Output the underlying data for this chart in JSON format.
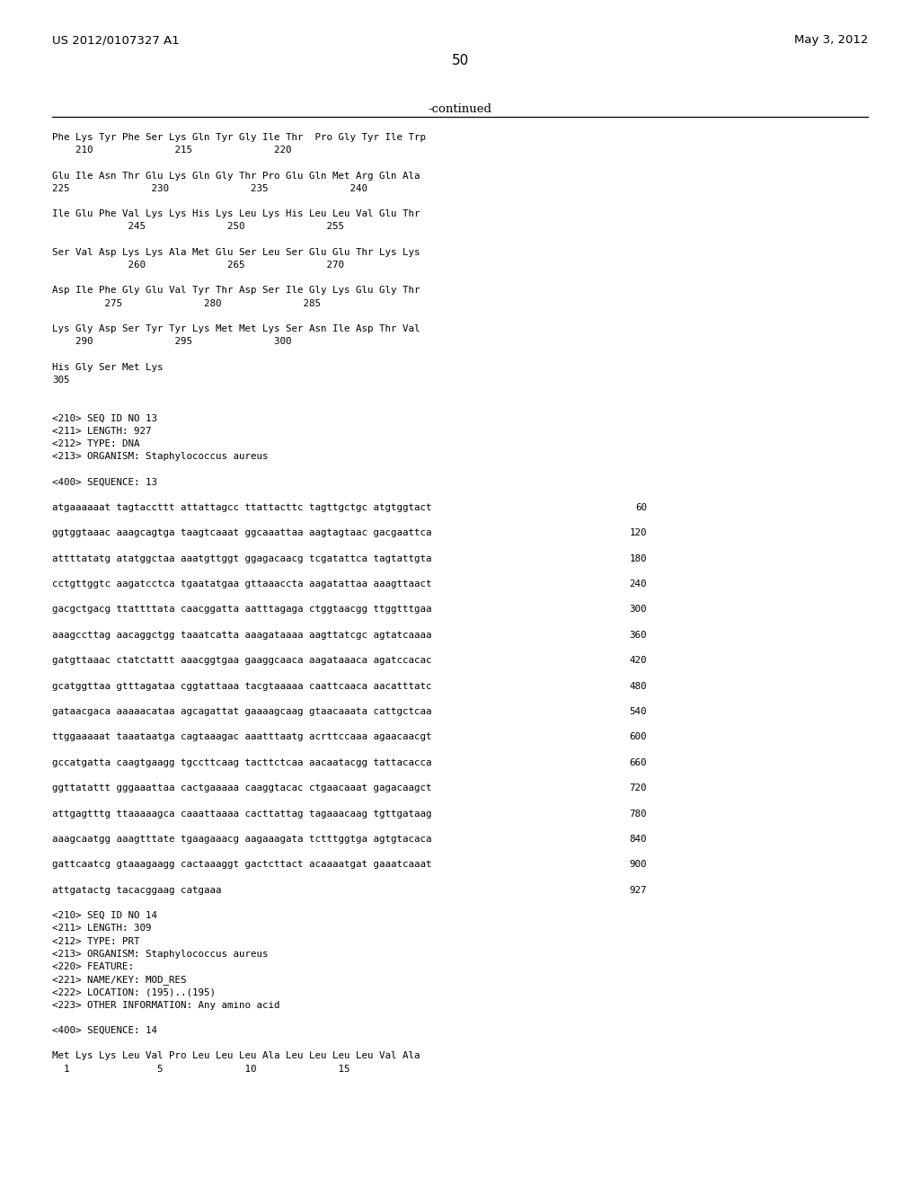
{
  "header_left": "US 2012/0107327 A1",
  "header_right": "May 3, 2012",
  "page_number": "50",
  "continued_label": "-continued",
  "background_color": "#ffffff",
  "text_color": "#000000",
  "content_lines": [
    {
      "text": "Phe Lys Tyr Phe Ser Lys Gln Tyr Gly Ile Thr  Pro Gly Tyr Ile Trp",
      "num": null
    },
    {
      "text": "    210              215              220",
      "num": null
    },
    {
      "text": "",
      "num": null
    },
    {
      "text": "Glu Ile Asn Thr Glu Lys Gln Gly Thr Pro Glu Gln Met Arg Gln Ala",
      "num": null
    },
    {
      "text": "225              230              235              240",
      "num": null
    },
    {
      "text": "",
      "num": null
    },
    {
      "text": "Ile Glu Phe Val Lys Lys His Lys Leu Lys His Leu Leu Val Glu Thr",
      "num": null
    },
    {
      "text": "             245              250              255",
      "num": null
    },
    {
      "text": "",
      "num": null
    },
    {
      "text": "Ser Val Asp Lys Lys Ala Met Glu Ser Leu Ser Glu Glu Thr Lys Lys",
      "num": null
    },
    {
      "text": "             260              265              270",
      "num": null
    },
    {
      "text": "",
      "num": null
    },
    {
      "text": "Asp Ile Phe Gly Glu Val Tyr Thr Asp Ser Ile Gly Lys Glu Gly Thr",
      "num": null
    },
    {
      "text": "         275              280              285",
      "num": null
    },
    {
      "text": "",
      "num": null
    },
    {
      "text": "Lys Gly Asp Ser Tyr Tyr Lys Met Met Lys Ser Asn Ile Asp Thr Val",
      "num": null
    },
    {
      "text": "    290              295              300",
      "num": null
    },
    {
      "text": "",
      "num": null
    },
    {
      "text": "His Gly Ser Met Lys",
      "num": null
    },
    {
      "text": "305",
      "num": null
    },
    {
      "text": "",
      "num": null
    },
    {
      "text": "",
      "num": null
    },
    {
      "text": "<210> SEQ ID NO 13",
      "num": null
    },
    {
      "text": "<211> LENGTH: 927",
      "num": null
    },
    {
      "text": "<212> TYPE: DNA",
      "num": null
    },
    {
      "text": "<213> ORGANISM: Staphylococcus aureus",
      "num": null
    },
    {
      "text": "",
      "num": null
    },
    {
      "text": "<400> SEQUENCE: 13",
      "num": null
    },
    {
      "text": "",
      "num": null
    },
    {
      "text": "atgaaaaaat tagtaccttt attattagcc ttattacttc tagttgctgc atgtggtact",
      "num": "60"
    },
    {
      "text": "",
      "num": null
    },
    {
      "text": "ggtggtaaac aaagcagtga taagtcaaat ggcaaattaa aagtagtaac gacgaattca",
      "num": "120"
    },
    {
      "text": "",
      "num": null
    },
    {
      "text": "attttatatg atatggctaa aaatgttggt ggagacaacg tcgatattca tagtattgta",
      "num": "180"
    },
    {
      "text": "",
      "num": null
    },
    {
      "text": "cctgttggtc aagatcctca tgaatatgaa gttaaaccta aagatattaa aaagttaact",
      "num": "240"
    },
    {
      "text": "",
      "num": null
    },
    {
      "text": "gacgctgacg ttattttata caacggatta aatttagaga ctggtaacgg ttggtttgaa",
      "num": "300"
    },
    {
      "text": "",
      "num": null
    },
    {
      "text": "aaagccttag aacaggctgg taaatcatta aaagataaaa aagttatcgc agtatcaaaa",
      "num": "360"
    },
    {
      "text": "",
      "num": null
    },
    {
      "text": "gatgttaaac ctatctattt aaacggtgaa gaaggcaaca aagataaaca agatccacac",
      "num": "420"
    },
    {
      "text": "",
      "num": null
    },
    {
      "text": "gcatggttaa gtttagataa cggtattaaa tacgtaaaaa caattcaaca aacatttatc",
      "num": "480"
    },
    {
      "text": "",
      "num": null
    },
    {
      "text": "gataacgaca aaaaacataa agcagattat gaaaagcaag gtaacaaata cattgctcaa",
      "num": "540"
    },
    {
      "text": "",
      "num": null
    },
    {
      "text": "ttggaaaaat taaataatga cagtaaagac aaatttaatg acrttccaaa agaacaacgt",
      "num": "600"
    },
    {
      "text": "",
      "num": null
    },
    {
      "text": "gccatgatta caagtgaagg tgccttcaag tacttctcaa aacaatacgg tattacacca",
      "num": "660"
    },
    {
      "text": "",
      "num": null
    },
    {
      "text": "ggttatattt gggaaattaa cactgaaaaa caaggtacac ctgaacaaat gagacaagct",
      "num": "720"
    },
    {
      "text": "",
      "num": null
    },
    {
      "text": "attgagtttg ttaaaaagca caaattaaaa cacttattag tagaaacaag tgttgataag",
      "num": "780"
    },
    {
      "text": "",
      "num": null
    },
    {
      "text": "aaagcaatgg aaagtttate tgaagaaacg aagaaagata tctttggtga agtgtacaca",
      "num": "840"
    },
    {
      "text": "",
      "num": null
    },
    {
      "text": "gattcaatcg gtaaagaagg cactaaaggt gactcttact acaaaatgat gaaatcaaat",
      "num": "900"
    },
    {
      "text": "",
      "num": null
    },
    {
      "text": "attgatactg tacacggaag catgaaa",
      "num": "927"
    },
    {
      "text": "",
      "num": null
    },
    {
      "text": "<210> SEQ ID NO 14",
      "num": null
    },
    {
      "text": "<211> LENGTH: 309",
      "num": null
    },
    {
      "text": "<212> TYPE: PRT",
      "num": null
    },
    {
      "text": "<213> ORGANISM: Staphylococcus aureus",
      "num": null
    },
    {
      "text": "<220> FEATURE:",
      "num": null
    },
    {
      "text": "<221> NAME/KEY: MOD_RES",
      "num": null
    },
    {
      "text": "<222> LOCATION: (195)..(195)",
      "num": null
    },
    {
      "text": "<223> OTHER INFORMATION: Any amino acid",
      "num": null
    },
    {
      "text": "",
      "num": null
    },
    {
      "text": "<400> SEQUENCE: 14",
      "num": null
    },
    {
      "text": "",
      "num": null
    },
    {
      "text": "Met Lys Lys Leu Val Pro Leu Leu Leu Ala Leu Leu Leu Leu Val Ala",
      "num": null
    },
    {
      "text": "  1               5              10              15",
      "num": null
    }
  ]
}
